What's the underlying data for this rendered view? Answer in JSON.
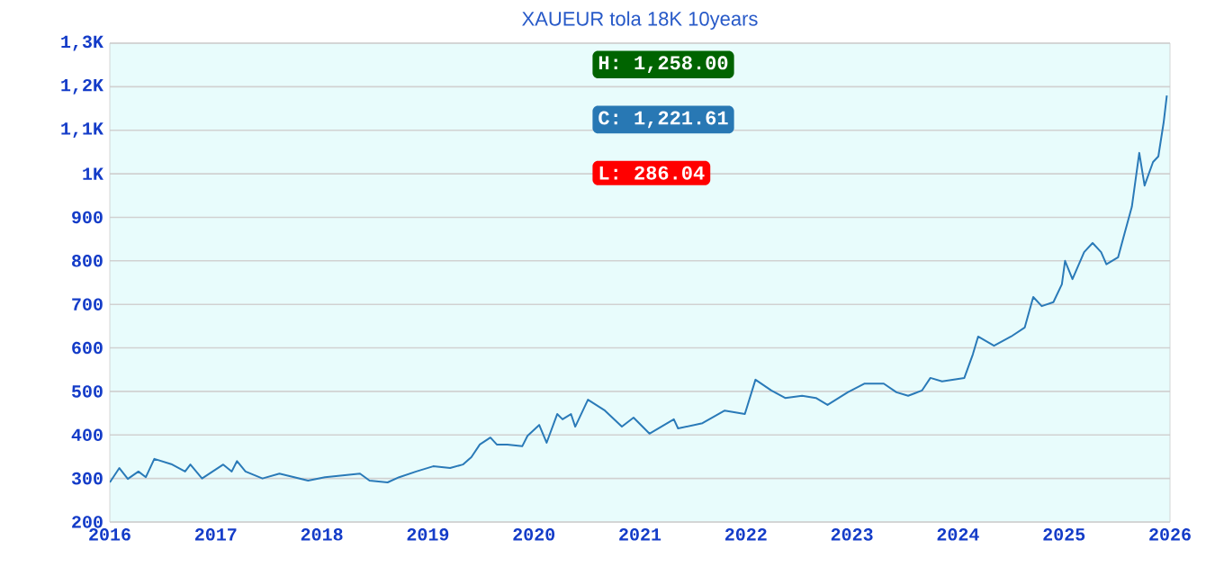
{
  "chart_data": {
    "type": "line",
    "title": "XAUEUR tola 18K 10years",
    "x": [
      2016.0,
      2016.09,
      2016.17,
      2016.27,
      2016.34,
      2016.42,
      2016.58,
      2016.71,
      2016.76,
      2016.87,
      2017.07,
      2017.15,
      2017.2,
      2017.28,
      2017.44,
      2017.6,
      2017.87,
      2018.03,
      2018.36,
      2018.45,
      2018.62,
      2018.73,
      2018.89,
      2019.05,
      2019.21,
      2019.33,
      2019.41,
      2019.49,
      2019.59,
      2019.65,
      2019.75,
      2019.89,
      2019.94,
      2020.05,
      2020.12,
      2020.22,
      2020.27,
      2020.35,
      2020.39,
      2020.51,
      2020.67,
      2020.83,
      2020.94,
      2021.09,
      2021.32,
      2021.36,
      2021.59,
      2021.8,
      2021.99,
      2022.09,
      2022.24,
      2022.37,
      2022.53,
      2022.66,
      2022.77,
      2022.96,
      2023.12,
      2023.3,
      2023.42,
      2023.53,
      2023.66,
      2023.74,
      2023.85,
      2024.06,
      2024.14,
      2024.19,
      2024.34,
      2024.5,
      2024.63,
      2024.71,
      2024.79,
      2024.9,
      2024.98,
      2025.01,
      2025.08,
      2025.19,
      2025.27,
      2025.35,
      2025.4,
      2025.51,
      2025.56,
      2025.64,
      2025.71,
      2025.76,
      2025.84,
      2025.89,
      2025.94,
      2025.97
    ],
    "values": [
      291,
      324,
      299,
      316,
      303,
      345,
      333,
      316,
      332,
      300,
      332,
      316,
      340,
      316,
      300,
      311,
      295,
      303,
      311,
      295,
      291,
      303,
      316,
      328,
      324,
      332,
      349,
      378,
      394,
      378,
      378,
      374,
      398,
      423,
      382,
      448,
      436,
      448,
      419,
      481,
      456,
      419,
      440,
      403,
      436,
      415,
      427,
      456,
      448,
      527,
      502,
      485,
      490,
      485,
      469,
      498,
      518,
      518,
      498,
      490,
      502,
      531,
      523,
      531,
      585,
      626,
      605,
      626,
      647,
      717,
      696,
      705,
      746,
      800,
      758,
      820,
      841,
      820,
      792,
      808,
      853,
      924,
      1048,
      973,
      1027,
      1040,
      1118,
      1180
    ],
    "color": "#2a7ab8",
    "xlim": [
      2016,
      2026
    ],
    "xticks": [
      2016,
      2017,
      2018,
      2019,
      2020,
      2021,
      2022,
      2023,
      2024,
      2025,
      2026
    ],
    "ylim": [
      200,
      1300
    ],
    "yticks": [
      200,
      300,
      400,
      500,
      600,
      700,
      800,
      900,
      {
        "value": 1000,
        "label": "1K"
      },
      {
        "value": 1100,
        "label": "1,1K"
      },
      {
        "value": 1200,
        "label": "1,2K"
      },
      {
        "value": 1300,
        "label": "1,3K"
      }
    ],
    "grid": "y",
    "annotations": [
      "H: 1,258.00",
      "C: 1,221.61",
      "L: 286.04"
    ]
  }
}
